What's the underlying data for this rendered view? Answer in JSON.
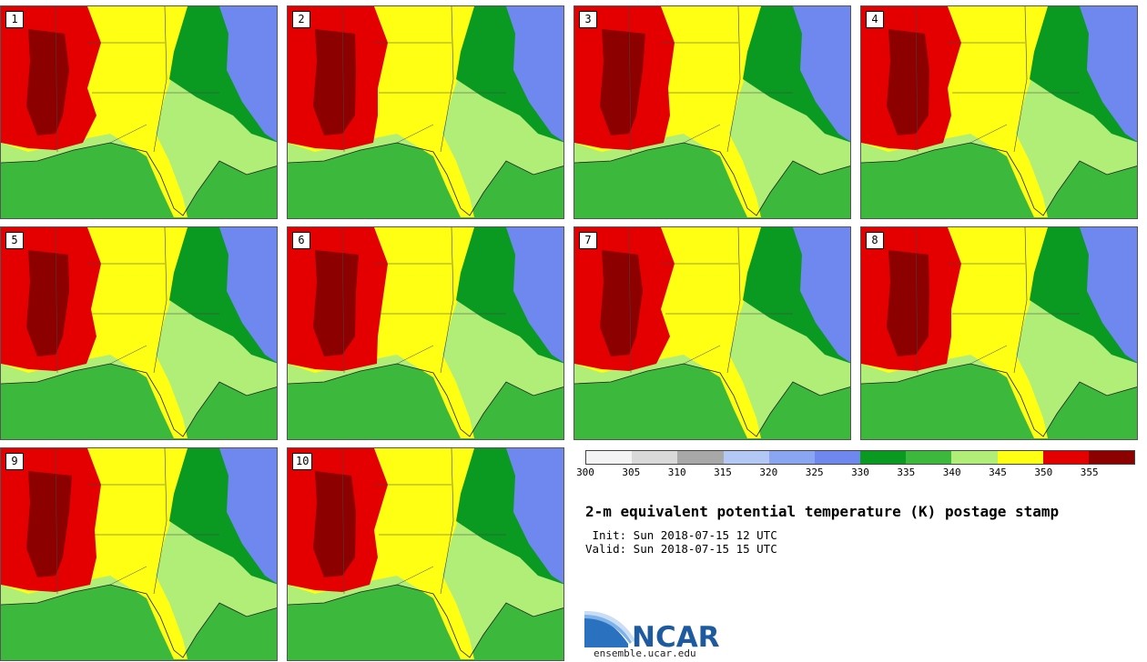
{
  "panels": [
    "1",
    "2",
    "3",
    "4",
    "5",
    "6",
    "7",
    "8",
    "9",
    "10"
  ],
  "colorbar": {
    "ticks": [
      "300",
      "305",
      "310",
      "315",
      "320",
      "325",
      "330",
      "335",
      "340",
      "345",
      "350",
      "355"
    ],
    "colors": [
      "#f4f4f4",
      "#d9d9d9",
      "#a8a8a8",
      "#b4c8f5",
      "#8aa6f2",
      "#6e88ef",
      "#0a9a22",
      "#3cb83c",
      "#b0ee78",
      "#ffff14",
      "#e40000",
      "#8c0000"
    ]
  },
  "title": "2-m equivalent potential temperature (K) postage stamp",
  "init": " Init: Sun 2018-07-15 12 UTC",
  "valid": "Valid: Sun 2018-07-15 15 UTC",
  "logo": {
    "text": "NCAR",
    "url": "ensemble.ucar.edu"
  },
  "map_colors": {
    "gulf": "#3cb83c",
    "land_south": "#b0ee78",
    "warm": "#ffff14",
    "hot": "#e40000",
    "very_hot": "#8c0000",
    "cool_land": "#0a9a22",
    "ocean": "#6e88ef"
  }
}
